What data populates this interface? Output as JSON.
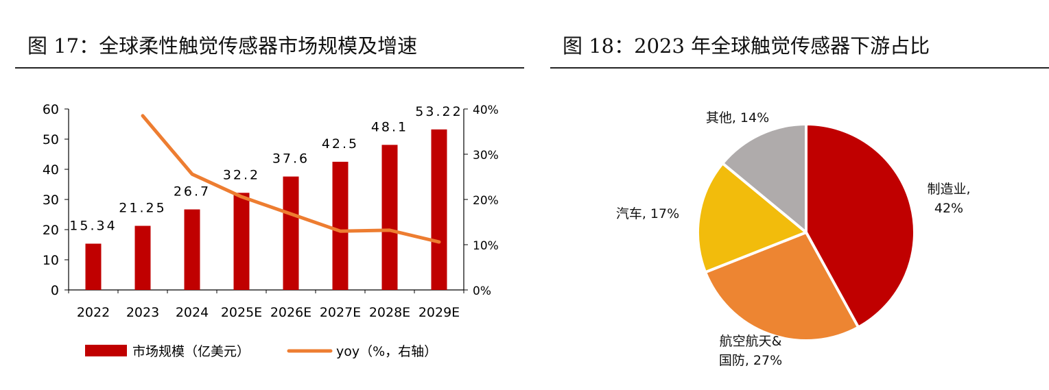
{
  "figures": {
    "left_title": "图 17：全球柔性触觉传感器市场规模及增速",
    "right_title": "图 18：2023 年全球触觉传感器下游占比"
  },
  "colors": {
    "bar": "#c00000",
    "line": "#ed7d31",
    "pie": [
      "#c00000",
      "#ed8532",
      "#f2bc0c",
      "#afabab"
    ]
  },
  "chart_data": [
    {
      "type": "bar",
      "categories": [
        "2022",
        "2023",
        "2024",
        "2025E",
        "2026E",
        "2027E",
        "2028E",
        "2029E"
      ],
      "series": [
        {
          "name": "市场规模（亿美元）",
          "type": "bar",
          "axis": "left",
          "values": [
            15.34,
            21.25,
            26.7,
            32.2,
            37.6,
            42.5,
            48.1,
            53.22
          ],
          "labels": [
            "15.34",
            "21.25",
            "26.7",
            "32.2",
            "37.6",
            "42.5",
            "48.1",
            "53.22"
          ]
        },
        {
          "name": "yoy（%，右轴）",
          "type": "line",
          "axis": "right",
          "values": [
            null,
            38.5,
            25.6,
            20.6,
            16.8,
            13.0,
            13.2,
            10.6
          ]
        }
      ],
      "ylim": [
        0,
        60
      ],
      "yticks": [
        "0",
        "10",
        "20",
        "30",
        "40",
        "50",
        "60"
      ],
      "y2lim": [
        0,
        40
      ],
      "y2ticks": [
        "0%",
        "10%",
        "20%",
        "30%",
        "40%"
      ],
      "legend_position": "bottom"
    },
    {
      "type": "pie",
      "slices": [
        {
          "label_lines": [
            "制造业,",
            "42%"
          ],
          "value": 42
        },
        {
          "label_lines": [
            "航空航天&",
            "国防, 27%"
          ],
          "value": 27
        },
        {
          "label_lines": [
            "汽车, 17%"
          ],
          "value": 17
        },
        {
          "label_lines": [
            "其他, 14%"
          ],
          "value": 14
        }
      ]
    }
  ]
}
